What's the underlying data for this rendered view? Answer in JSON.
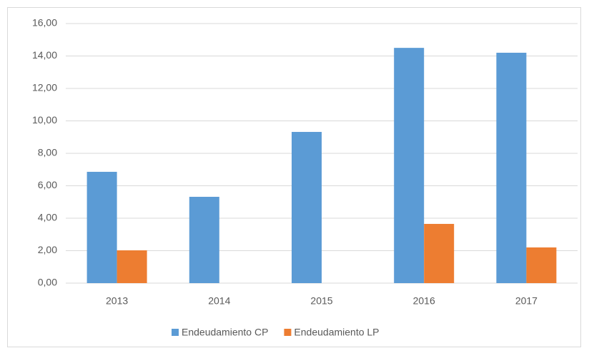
{
  "chart_data": {
    "type": "bar",
    "categories": [
      "2013",
      "2014",
      "2015",
      "2016",
      "2017"
    ],
    "series": [
      {
        "name": "Endeudamiento CP",
        "color": "#5b9bd5",
        "values": [
          6.86,
          5.32,
          9.32,
          14.5,
          14.2
        ]
      },
      {
        "name": "Endeudamiento LP",
        "color": "#ed7d31",
        "values": [
          2.02,
          0,
          0,
          3.65,
          2.2
        ]
      }
    ],
    "ylim": [
      0,
      16
    ],
    "yticks": [
      {
        "value": 0,
        "label": "0,00"
      },
      {
        "value": 2,
        "label": "2,00"
      },
      {
        "value": 4,
        "label": "4,00"
      },
      {
        "value": 6,
        "label": "6,00"
      },
      {
        "value": 8,
        "label": "8,00"
      },
      {
        "value": 10,
        "label": "10,00"
      },
      {
        "value": 12,
        "label": "12,00"
      },
      {
        "value": 14,
        "label": "14,00"
      },
      {
        "value": 16,
        "label": "16,00"
      }
    ],
    "grid": true,
    "legend": "bottom"
  }
}
